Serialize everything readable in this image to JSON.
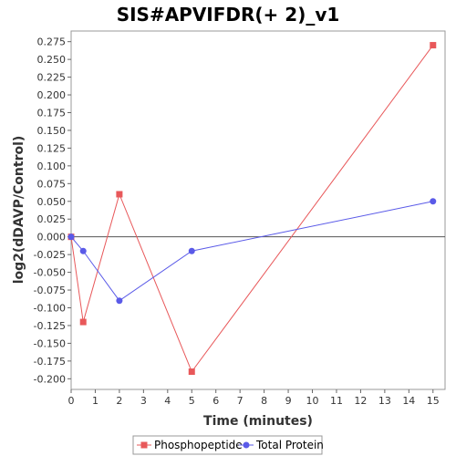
{
  "chart_data": {
    "type": "line",
    "title": "SIS#APVIFDR(+ 2)_v1",
    "xlabel": "Time (minutes)",
    "ylabel": "log2(dDAVP/Control)",
    "xlim": [
      0,
      15.5
    ],
    "ylim": [
      -0.215,
      0.29
    ],
    "x_ticks": [
      0,
      1,
      2,
      3,
      4,
      5,
      6,
      7,
      8,
      9,
      10,
      11,
      12,
      13,
      14,
      15
    ],
    "y_ticks": [
      -0.2,
      -0.175,
      -0.15,
      -0.125,
      -0.1,
      -0.075,
      -0.05,
      -0.025,
      0,
      0.025,
      0.05,
      0.075,
      0.1,
      0.125,
      0.15,
      0.175,
      0.2,
      0.225,
      0.25,
      0.275
    ],
    "y_tick_labels": [
      "-0.200",
      "-0.175",
      "-0.150",
      "-0.125",
      "-0.100",
      "-0.075",
      "-0.050",
      "-0.025",
      "0.000",
      "0.025",
      "0.050",
      "0.075",
      "0.100",
      "0.125",
      "0.150",
      "0.175",
      "0.200",
      "0.225",
      "0.250",
      "0.275"
    ],
    "zero_line": true,
    "grid": false,
    "legend_position": "bottom",
    "series": [
      {
        "name": "Phosphopeptide",
        "color": "#e8585a",
        "marker": "square",
        "x": [
          0,
          0.5,
          2,
          5,
          15
        ],
        "y": [
          0,
          -0.12,
          0.06,
          -0.19,
          0.27
        ]
      },
      {
        "name": "Total Protein",
        "color": "#5a5ae8",
        "marker": "circle",
        "x": [
          0,
          0.5,
          2,
          5,
          15
        ],
        "y": [
          0,
          -0.02,
          -0.09,
          -0.02,
          0.05
        ]
      }
    ]
  }
}
